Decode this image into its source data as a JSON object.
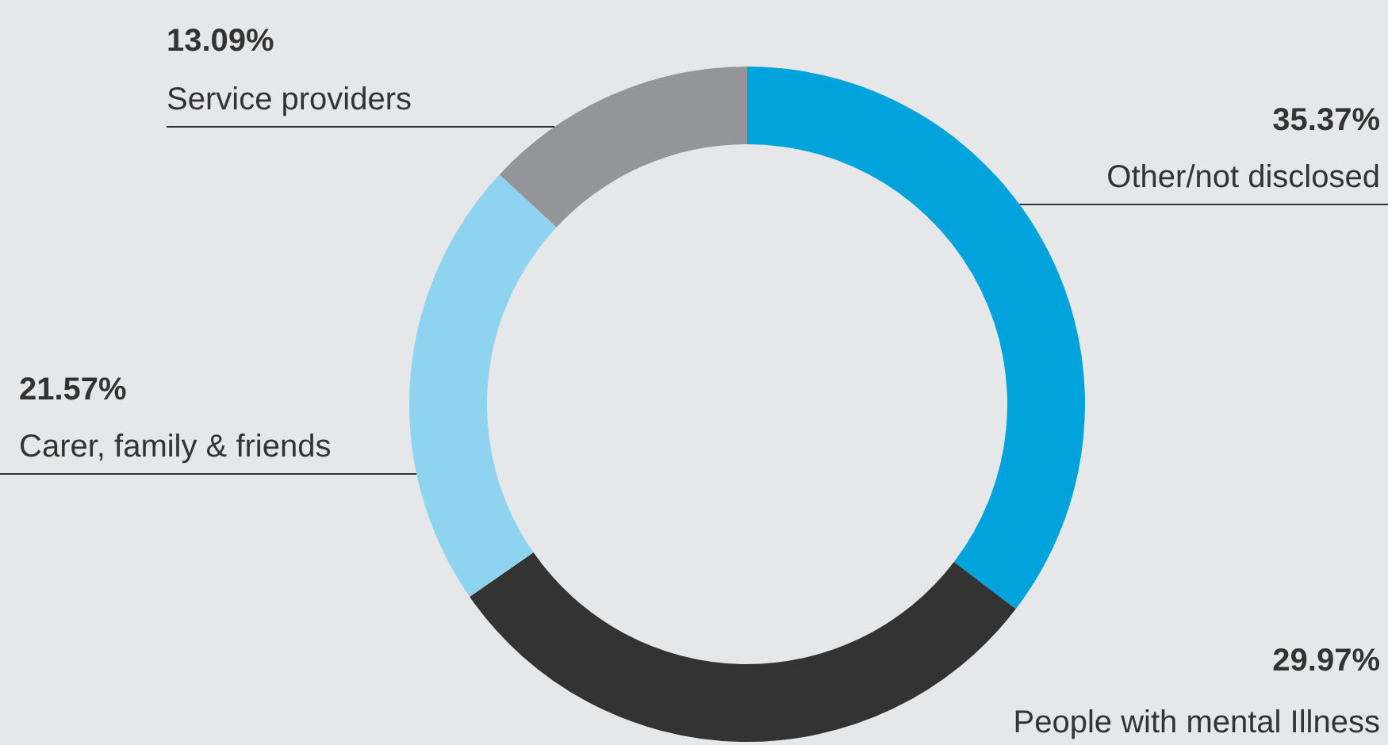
{
  "chart_data": {
    "type": "donut",
    "categories": [
      "Other/not disclosed",
      "People with mental Illness",
      "Carer, family & friends",
      "Service providers"
    ],
    "values": [
      35.37,
      29.97,
      21.57,
      13.09
    ],
    "colors": [
      "#00a3dc",
      "#333333",
      "#8ed3ef",
      "#939598"
    ],
    "value_labels": [
      "35.37%",
      "29.97%",
      "21.57%",
      "13.09%"
    ]
  }
}
